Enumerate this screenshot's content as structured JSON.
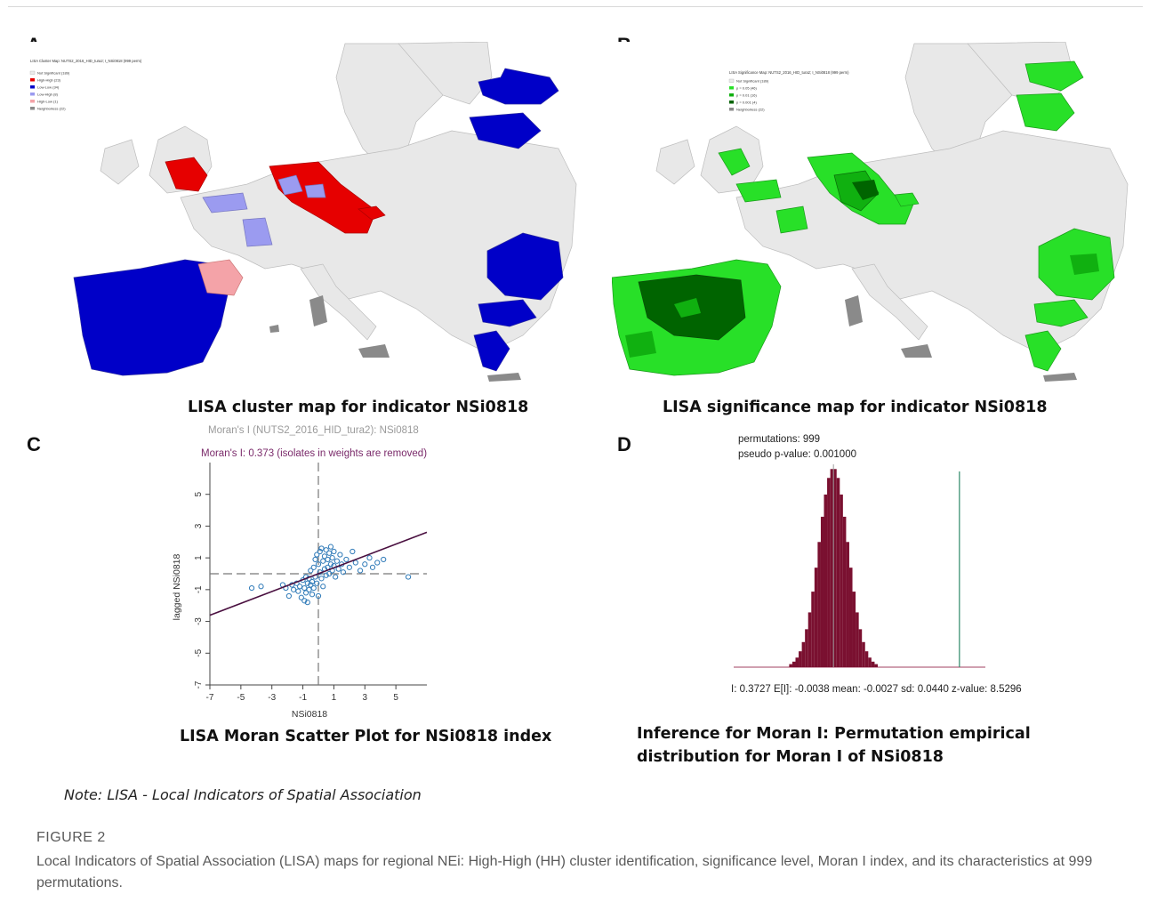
{
  "panels": {
    "a": {
      "letter": "A",
      "title": "LISA cluster map for indicator NSi0818",
      "legend": {
        "heading": "LISA Cluster Map: NUTS2_2016_HID_tura2; I_NSi0818 (999 perm)",
        "items": [
          {
            "label": "Not Significant (189)",
            "color": "#ececec"
          },
          {
            "label": "High-High (23)",
            "color": "#e60000"
          },
          {
            "label": "Low-Low (34)",
            "color": "#0000c8"
          },
          {
            "label": "Low-High (8)",
            "color": "#9b9bf0"
          },
          {
            "label": "High-Low (1)",
            "color": "#f4a3a8"
          },
          {
            "label": "Neighborless (22)",
            "color": "#8a8a8a"
          }
        ]
      }
    },
    "b": {
      "letter": "B",
      "title": "LISA significance map for indicator NSi0818",
      "legend": {
        "heading": "LISA Significance Map: NUTS2_2016_HID_tura2; I_NSi0818 (999 perm)",
        "items": [
          {
            "label": "Not Significant (189)",
            "color": "#ececec"
          },
          {
            "label": "p = 0.05 (46)",
            "color": "#28e028"
          },
          {
            "label": "p = 0.01 (16)",
            "color": "#10b010"
          },
          {
            "label": "p = 0.001 (4)",
            "color": "#006400"
          },
          {
            "label": "Neighborless (22)",
            "color": "#8a8a8a"
          }
        ]
      }
    },
    "c": {
      "letter": "C",
      "title": "LISA Moran Scatter Plot for NSi0818 index",
      "header": "Moran's I (NUTS2_2016_HID_tura2): NSi0818",
      "subheader": "Moran's I: 0.373 (isolates in weights are removed)"
    },
    "d": {
      "letter": "D",
      "title_line1": "Inference for Moran I: Permutation empirical",
      "title_line2": "distribution for Moran I of NSi0818",
      "permutations": "permutations: 999",
      "pvalue": "pseudo p-value: 0.001000",
      "stats": "I: 0.3727   E[I]: -0.0038   mean: -0.0027   sd: 0.0440   z-value: 8.5296"
    }
  },
  "note": "Note: LISA - Local Indicators of Spatial Association",
  "caption": {
    "label": "FIGURE 2",
    "text": "Local Indicators of Spatial Association (LISA) maps for regional NEi: High-High (HH) cluster identification, significance level, Moran I index, and its characteristics at 999 permutations."
  },
  "chart_data": [
    {
      "type": "scatter",
      "title": "LISA Moran Scatter Plot for NSi0818 index",
      "xlabel": "NSi0818",
      "ylabel": "lagged NSi0818",
      "xlim": [
        -7,
        7
      ],
      "ylim": [
        -7,
        7
      ],
      "xticks": [
        "-7",
        "-5",
        "-3",
        "-1",
        "1",
        "3",
        "5"
      ],
      "yticks": [
        "-7",
        "-5",
        "-3",
        "-1",
        "1",
        "3",
        "5"
      ],
      "slope": 0.373,
      "points": [
        [
          -4.3,
          -0.9
        ],
        [
          -3.7,
          -0.8
        ],
        [
          -2.3,
          -0.7
        ],
        [
          -2.1,
          -0.9
        ],
        [
          -1.9,
          -1.4
        ],
        [
          -1.7,
          -0.7
        ],
        [
          -1.6,
          -1.0
        ],
        [
          -1.4,
          -0.6
        ],
        [
          -1.3,
          -1.1
        ],
        [
          -1.2,
          -0.8
        ],
        [
          -1.1,
          -1.5
        ],
        [
          -1.0,
          -0.4
        ],
        [
          -0.9,
          -1.7
        ],
        [
          -0.9,
          -0.9
        ],
        [
          -0.8,
          -0.2
        ],
        [
          -0.8,
          -1.2
        ],
        [
          -0.7,
          -0.6
        ],
        [
          -0.7,
          -1.8
        ],
        [
          -0.6,
          -0.3
        ],
        [
          -0.6,
          -1.0
        ],
        [
          -0.5,
          -0.7
        ],
        [
          -0.5,
          0.2
        ],
        [
          -0.4,
          -1.3
        ],
        [
          -0.4,
          -0.5
        ],
        [
          -0.3,
          0.4
        ],
        [
          -0.3,
          -0.9
        ],
        [
          -0.2,
          0.9
        ],
        [
          -0.2,
          -0.2
        ],
        [
          -0.1,
          1.2
        ],
        [
          -0.1,
          -0.6
        ],
        [
          0.0,
          0.6
        ],
        [
          0.0,
          -1.4
        ],
        [
          0.1,
          1.4
        ],
        [
          0.1,
          0.1
        ],
        [
          0.2,
          1.6
        ],
        [
          0.2,
          -0.3
        ],
        [
          0.3,
          0.8
        ],
        [
          0.3,
          -0.8
        ],
        [
          0.4,
          1.1
        ],
        [
          0.4,
          0.3
        ],
        [
          0.5,
          1.5
        ],
        [
          0.5,
          -0.1
        ],
        [
          0.6,
          0.9
        ],
        [
          0.6,
          0.4
        ],
        [
          0.7,
          1.3
        ],
        [
          0.7,
          0.0
        ],
        [
          0.8,
          0.6
        ],
        [
          0.8,
          1.7
        ],
        [
          0.9,
          0.2
        ],
        [
          0.9,
          1.0
        ],
        [
          1.0,
          0.5
        ],
        [
          1.0,
          1.4
        ],
        [
          1.1,
          -0.2
        ],
        [
          1.2,
          0.8
        ],
        [
          1.3,
          0.3
        ],
        [
          1.4,
          1.2
        ],
        [
          1.5,
          0.6
        ],
        [
          1.6,
          0.1
        ],
        [
          1.8,
          0.9
        ],
        [
          2.0,
          0.4
        ],
        [
          2.2,
          1.4
        ],
        [
          2.4,
          0.7
        ],
        [
          2.7,
          0.2
        ],
        [
          3.0,
          0.6
        ],
        [
          3.3,
          1.0
        ],
        [
          3.5,
          0.4
        ],
        [
          3.8,
          0.7
        ],
        [
          4.2,
          0.9
        ],
        [
          5.8,
          -0.2
        ]
      ]
    },
    {
      "type": "bar",
      "title": "Inference for Moran I: Permutation empirical distribution for Moran I of NSi0818",
      "observed_I": 0.3727,
      "mean": -0.0027,
      "sd": 0.044
    }
  ]
}
